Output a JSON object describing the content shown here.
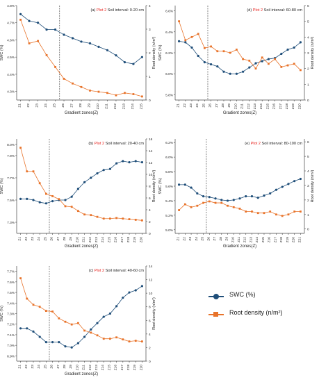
{
  "colors": {
    "swc": "#1f4e79",
    "root": "#e8732a",
    "plot_label": "#e8231e"
  },
  "legend": {
    "swc": "SWC (%)",
    "root": "Root density (n/m²)"
  },
  "chart_data": [
    {
      "type": "line",
      "title_prefix": "(a)",
      "title_plot": "Plot 2",
      "title_rest": "Soil interval: 0-20 cm",
      "categories": [
        "Z1",
        "Z2",
        "Z3",
        "Z4",
        "Z5",
        "Z6",
        "Z7",
        "Z8",
        "Z9",
        "Z10",
        "Z11",
        "Z12",
        "Z13",
        "Z14",
        "Z15"
      ],
      "ylabel": "SWC (%)",
      "y2label": "Root density (n/m²)",
      "xlabel": "Gradient zones(Z)",
      "ylim": [
        4.25,
        4.8
      ],
      "yticks": [
        4.3,
        4.4,
        4.5,
        4.6,
        4.7,
        4.8
      ],
      "ytick_labels": [
        "4.3%",
        "4.4%",
        "4.5%",
        "4.6%",
        "4.7%",
        "4.8%"
      ],
      "y2lim": [
        0,
        4
      ],
      "y2ticks": [
        0,
        1,
        2,
        3,
        4
      ],
      "divider_after": "Z5",
      "series": [
        {
          "name": "SWC (%)",
          "axis": "left",
          "values": [
            4.75,
            4.71,
            4.7,
            4.66,
            4.66,
            4.63,
            4.61,
            4.59,
            4.58,
            4.56,
            4.54,
            4.51,
            4.47,
            4.46,
            4.5
          ]
        },
        {
          "name": "Root density (n/m²)",
          "axis": "right",
          "values": [
            3.4,
            2.4,
            2.5,
            1.9,
            1.4,
            0.9,
            0.7,
            0.55,
            0.4,
            0.35,
            0.3,
            0.2,
            0.3,
            0.25,
            0.15
          ]
        }
      ]
    },
    {
      "type": "line",
      "title_prefix": "(b)",
      "title_plot": "Plot 2",
      "title_rest": "Soil interval: 20-40 cm",
      "categories": [
        "Z1",
        "Z2",
        "Z3",
        "Z4",
        "Z5",
        "Z6",
        "Z7",
        "Z8",
        "Z9",
        "Z10",
        "Z11",
        "Z12",
        "Z13",
        "Z14",
        "Z15",
        "Z16",
        "Z17",
        "Z18",
        "Z19",
        "Z20"
      ],
      "ylabel": "SWC (%)",
      "y2label": "Root density (n/m²)",
      "xlabel": "Gradient zones(Z)",
      "ylim": [
        7.2,
        8.05
      ],
      "yticks": [
        7.3,
        7.5,
        7.7,
        7.9,
        8.0
      ],
      "ytick_labels": [
        "7.3%",
        "7.5%",
        "7.7%",
        "7.9%",
        "8.0%"
      ],
      "y2lim": [
        0,
        16
      ],
      "y2ticks": [
        0,
        2,
        4,
        6,
        8,
        10,
        12,
        14,
        16
      ],
      "divider_after": "Z5",
      "series": [
        {
          "name": "SWC (%)",
          "axis": "left",
          "values": [
            7.51,
            7.51,
            7.5,
            7.48,
            7.47,
            7.49,
            7.5,
            7.5,
            7.53,
            7.6,
            7.66,
            7.7,
            7.74,
            7.77,
            7.78,
            7.83,
            7.85,
            7.84,
            7.85,
            7.84
          ]
        },
        {
          "name": "Root density (n/m²)",
          "axis": "right",
          "values": [
            14.5,
            10.5,
            10.5,
            8.5,
            6.7,
            6.3,
            5.8,
            4.6,
            4.5,
            3.8,
            3.2,
            3.1,
            2.8,
            2.5,
            2.5,
            2.6,
            2.5,
            2.4,
            2.3,
            2.2
          ]
        }
      ]
    },
    {
      "type": "line",
      "title_prefix": "(c)",
      "title_plot": "Plot 2",
      "title_rest": "Soil interval: 40-60 cm",
      "categories": [
        "Z1",
        "Z2",
        "Z3",
        "Z4",
        "Z5",
        "Z6",
        "Z7",
        "Z8",
        "Z9",
        "Z10",
        "Z11",
        "Z12",
        "Z13",
        "Z14",
        "Z15",
        "Z16",
        "Z17",
        "Z18",
        "Z19",
        "Z20"
      ],
      "ylabel": "SWC (%)",
      "y2label": "Root density (n/m²)",
      "xlabel": "Gradient zones(Z)",
      "ylim": [
        6.85,
        7.75
      ],
      "yticks": [
        6.9,
        7.0,
        7.1,
        7.2,
        7.3,
        7.4,
        7.5,
        7.6,
        7.7
      ],
      "ytick_labels": [
        "6.9%",
        "7.0%",
        "7.1%",
        "7.2%",
        "7.3%",
        "7.4%",
        "7.5%",
        "7.6%",
        "7.7%"
      ],
      "y2lim": [
        0,
        14
      ],
      "y2ticks": [
        0,
        2,
        4,
        6,
        8,
        10,
        12,
        14
      ],
      "divider_after": "Z5",
      "series": [
        {
          "name": "SWC (%)",
          "axis": "left",
          "values": [
            7.16,
            7.16,
            7.13,
            7.08,
            7.03,
            7.03,
            7.03,
            6.99,
            6.98,
            7.02,
            7.08,
            7.15,
            7.21,
            7.27,
            7.3,
            7.37,
            7.45,
            7.5,
            7.52,
            7.56
          ]
        },
        {
          "name": "Root density (n/m²)",
          "axis": "right",
          "values": [
            12.2,
            9.2,
            8.3,
            8.0,
            7.4,
            7.3,
            6.3,
            5.8,
            5.4,
            5.6,
            4.5,
            4.2,
            3.8,
            3.3,
            3.3,
            3.5,
            3.2,
            2.9,
            3.0,
            2.9
          ]
        }
      ]
    },
    {
      "type": "line",
      "title_prefix": "(d)",
      "title_plot": "Plot 2",
      "title_rest": "Soil interval: 60-80 cm",
      "categories": [
        "Z1",
        "Z2",
        "Z3",
        "Z4",
        "Z5",
        "Z6",
        "Z7",
        "Z8",
        "Z9",
        "Z10",
        "Z11",
        "Z12",
        "Z13",
        "Z14",
        "Z15",
        "Z16",
        "Z17",
        "Z18",
        "Z19",
        "Z20"
      ],
      "ylabel": "SWC (%)",
      "y2label": "Root density (n/m²)",
      "xlabel": "Gradient zones(Z)",
      "ylim": [
        5.75,
        6.65
      ],
      "yticks": [
        5.8,
        6.0,
        6.2,
        6.4,
        6.6
      ],
      "ytick_labels": [
        "5.8%",
        "6.0%",
        "6.2%",
        "6.4%",
        "6.6%"
      ],
      "y2lim": [
        0,
        6
      ],
      "y2ticks": [
        0,
        1,
        2,
        3,
        4,
        5,
        6
      ],
      "divider_after": "Z5",
      "series": [
        {
          "name": "SWC (%)",
          "axis": "left",
          "values": [
            6.31,
            6.3,
            6.25,
            6.17,
            6.11,
            6.09,
            6.07,
            6.02,
            6.0,
            6.0,
            6.02,
            6.06,
            6.1,
            6.12,
            6.14,
            6.15,
            6.19,
            6.23,
            6.25,
            6.3
          ]
        },
        {
          "name": "Root density (n/m²)",
          "axis": "right",
          "values": [
            5.0,
            3.8,
            4.0,
            4.2,
            3.3,
            3.4,
            3.1,
            3.1,
            3.0,
            3.2,
            2.6,
            2.5,
            2.0,
            2.7,
            2.3,
            2.6,
            2.1,
            2.2,
            2.3,
            1.9
          ]
        }
      ]
    },
    {
      "type": "line",
      "title_prefix": "(e)",
      "title_plot": "Plot 2",
      "title_rest": "Soil interval: 80-100 cm",
      "categories": [
        "Z1",
        "Z2",
        "Z3",
        "Z4",
        "Z5",
        "Z6",
        "Z7",
        "Z8",
        "Z9",
        "Z10",
        "Z11",
        "Z12",
        "Z13",
        "Z14",
        "Z15",
        "Z16",
        "Z17",
        "Z18",
        "Z19",
        "Z20",
        "Z21"
      ],
      "ylabel": "SWC (%)",
      "y2label": "Root density (n/m²)",
      "xlabel": "Gradient zones(Z)",
      "ylim": [
        4.95,
        6.25
      ],
      "yticks": [
        5.0,
        5.2,
        5.4,
        5.6,
        5.8,
        6.0,
        6.2
      ],
      "ytick_labels": [
        "5.0%",
        "5.2%",
        "5.4%",
        "5.6%",
        "5.8%",
        "6.0%",
        "6.2%"
      ],
      "y2lim": [
        -0.3,
        6.2
      ],
      "y2ticks": [
        0,
        1,
        2,
        3,
        4,
        5,
        6
      ],
      "divider_after": "Z5",
      "series": [
        {
          "name": "SWC (%)",
          "axis": "left",
          "values": [
            5.62,
            5.62,
            5.58,
            5.5,
            5.46,
            5.45,
            5.43,
            5.41,
            5.4,
            5.41,
            5.43,
            5.46,
            5.46,
            5.44,
            5.47,
            5.5,
            5.55,
            5.59,
            5.63,
            5.67,
            5.7
          ]
        },
        {
          "name": "Root density (n/m²)",
          "axis": "right",
          "values": [
            1.3,
            1.7,
            1.5,
            1.6,
            1.8,
            1.9,
            1.8,
            1.8,
            1.6,
            1.5,
            1.4,
            1.2,
            1.2,
            1.1,
            1.1,
            1.2,
            1.0,
            0.9,
            1.0,
            1.2,
            1.2
          ]
        }
      ]
    }
  ]
}
